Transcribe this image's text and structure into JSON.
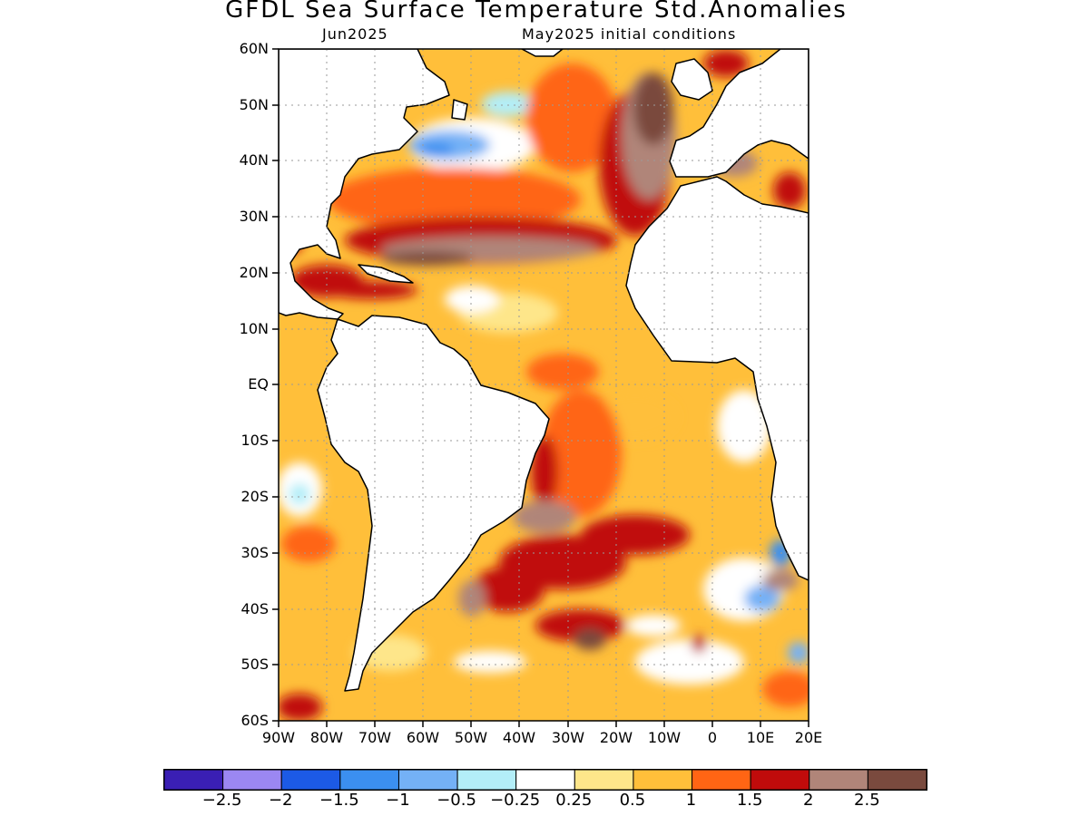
{
  "title": "GFDL Sea Surface Temperature Std.Anomalies",
  "subtitle_left": "Jun2025",
  "subtitle_right": "May2025 initial conditions",
  "lat_labels": [
    "60N",
    "50N",
    "40N",
    "30N",
    "20N",
    "10N",
    "EQ",
    "10S",
    "20S",
    "30S",
    "40S",
    "50S",
    "60S"
  ],
  "lon_labels": [
    "90W",
    "80W",
    "70W",
    "60W",
    "50W",
    "40W",
    "30W",
    "20W",
    "10W",
    "0",
    "10E",
    "20E"
  ],
  "colorbar": {
    "colors": [
      "#3a1fb4",
      "#9b87f2",
      "#1c5ae6",
      "#3b8ff0",
      "#74b1f6",
      "#b3eef8",
      "#ffffff",
      "#fee68a",
      "#ffbf3a",
      "#ff6514",
      "#c00b0b",
      "#b08579",
      "#7a4a3e"
    ],
    "labels": [
      "−2.5",
      "−2",
      "−1.5",
      "−1",
      "−0.5",
      "−0.25",
      "0.25",
      "0.5",
      "1",
      "1.5",
      "2",
      "2.5"
    ]
  },
  "map": {
    "region": "Atlantic Ocean 90W–20E, 60S–60N",
    "ocean_base_color": "#ffbf3a",
    "land_color": "#ffffff"
  }
}
